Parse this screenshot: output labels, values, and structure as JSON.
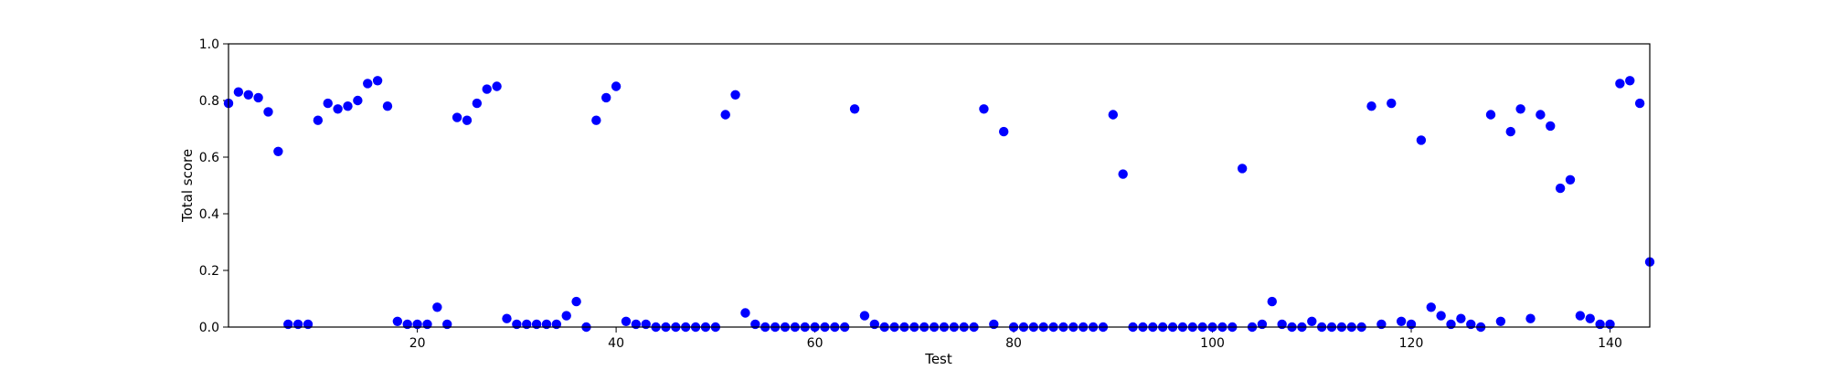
{
  "chart_data": {
    "type": "scatter",
    "title": "",
    "xlabel": "Test",
    "ylabel": "Total score",
    "xlim": [
      1,
      144
    ],
    "ylim": [
      0.0,
      1.0
    ],
    "grid": false,
    "xticks": [
      20,
      40,
      60,
      80,
      100,
      120,
      140
    ],
    "yticks": [
      "0.0",
      "0.2",
      "0.4",
      "0.6",
      "0.8",
      "1.0"
    ],
    "series": [
      {
        "color": "#0000ff",
        "points": [
          [
            1,
            0.79
          ],
          [
            2,
            0.83
          ],
          [
            3,
            0.82
          ],
          [
            4,
            0.81
          ],
          [
            5,
            0.76
          ],
          [
            6,
            0.62
          ],
          [
            7,
            0.01
          ],
          [
            8,
            0.01
          ],
          [
            9,
            0.01
          ],
          [
            10,
            0.73
          ],
          [
            11,
            0.79
          ],
          [
            12,
            0.77
          ],
          [
            13,
            0.78
          ],
          [
            14,
            0.8
          ],
          [
            15,
            0.86
          ],
          [
            16,
            0.87
          ],
          [
            17,
            0.78
          ],
          [
            18,
            0.02
          ],
          [
            19,
            0.01
          ],
          [
            20,
            0.01
          ],
          [
            21,
            0.01
          ],
          [
            22,
            0.07
          ],
          [
            23,
            0.01
          ],
          [
            24,
            0.74
          ],
          [
            25,
            0.73
          ],
          [
            26,
            0.79
          ],
          [
            27,
            0.84
          ],
          [
            28,
            0.85
          ],
          [
            29,
            0.03
          ],
          [
            30,
            0.01
          ],
          [
            31,
            0.01
          ],
          [
            32,
            0.01
          ],
          [
            33,
            0.01
          ],
          [
            34,
            0.01
          ],
          [
            35,
            0.04
          ],
          [
            36,
            0.09
          ],
          [
            37,
            0.0
          ],
          [
            38,
            0.73
          ],
          [
            39,
            0.81
          ],
          [
            40,
            0.85
          ],
          [
            41,
            0.02
          ],
          [
            42,
            0.01
          ],
          [
            43,
            0.01
          ],
          [
            44,
            0.0
          ],
          [
            45,
            0.0
          ],
          [
            46,
            0.0
          ],
          [
            47,
            0.0
          ],
          [
            48,
            0.0
          ],
          [
            49,
            0.0
          ],
          [
            50,
            0.0
          ],
          [
            51,
            0.75
          ],
          [
            52,
            0.82
          ],
          [
            53,
            0.05
          ],
          [
            54,
            0.01
          ],
          [
            55,
            0.0
          ],
          [
            56,
            0.0
          ],
          [
            57,
            0.0
          ],
          [
            58,
            0.0
          ],
          [
            59,
            0.0
          ],
          [
            60,
            0.0
          ],
          [
            61,
            0.0
          ],
          [
            62,
            0.0
          ],
          [
            63,
            0.0
          ],
          [
            64,
            0.77
          ],
          [
            65,
            0.04
          ],
          [
            66,
            0.01
          ],
          [
            67,
            0.0
          ],
          [
            68,
            0.0
          ],
          [
            69,
            0.0
          ],
          [
            70,
            0.0
          ],
          [
            71,
            0.0
          ],
          [
            72,
            0.0
          ],
          [
            73,
            0.0
          ],
          [
            74,
            0.0
          ],
          [
            75,
            0.0
          ],
          [
            76,
            0.0
          ],
          [
            77,
            0.77
          ],
          [
            78,
            0.01
          ],
          [
            79,
            0.69
          ],
          [
            80,
            0.0
          ],
          [
            81,
            0.0
          ],
          [
            82,
            0.0
          ],
          [
            83,
            0.0
          ],
          [
            84,
            0.0
          ],
          [
            85,
            0.0
          ],
          [
            86,
            0.0
          ],
          [
            87,
            0.0
          ],
          [
            88,
            0.0
          ],
          [
            89,
            0.0
          ],
          [
            90,
            0.75
          ],
          [
            91,
            0.54
          ],
          [
            92,
            0.0
          ],
          [
            93,
            0.0
          ],
          [
            94,
            0.0
          ],
          [
            95,
            0.0
          ],
          [
            96,
            0.0
          ],
          [
            97,
            0.0
          ],
          [
            98,
            0.0
          ],
          [
            99,
            0.0
          ],
          [
            100,
            0.0
          ],
          [
            101,
            0.0
          ],
          [
            102,
            0.0
          ],
          [
            103,
            0.56
          ],
          [
            104,
            0.0
          ],
          [
            105,
            0.01
          ],
          [
            106,
            0.09
          ],
          [
            107,
            0.01
          ],
          [
            108,
            0.0
          ],
          [
            109,
            0.0
          ],
          [
            110,
            0.02
          ],
          [
            111,
            0.0
          ],
          [
            112,
            0.0
          ],
          [
            113,
            0.0
          ],
          [
            114,
            0.0
          ],
          [
            115,
            0.0
          ],
          [
            116,
            0.78
          ],
          [
            117,
            0.01
          ],
          [
            118,
            0.79
          ],
          [
            119,
            0.02
          ],
          [
            120,
            0.01
          ],
          [
            121,
            0.66
          ],
          [
            122,
            0.07
          ],
          [
            123,
            0.04
          ],
          [
            124,
            0.01
          ],
          [
            125,
            0.03
          ],
          [
            126,
            0.01
          ],
          [
            127,
            0.0
          ],
          [
            128,
            0.75
          ],
          [
            129,
            0.02
          ],
          [
            130,
            0.69
          ],
          [
            131,
            0.77
          ],
          [
            132,
            0.03
          ],
          [
            133,
            0.75
          ],
          [
            134,
            0.71
          ],
          [
            135,
            0.49
          ],
          [
            136,
            0.52
          ],
          [
            137,
            0.04
          ],
          [
            138,
            0.03
          ],
          [
            139,
            0.01
          ],
          [
            140,
            0.01
          ],
          [
            141,
            0.86
          ],
          [
            142,
            0.87
          ],
          [
            143,
            0.79
          ],
          [
            144,
            0.23
          ]
        ]
      }
    ]
  }
}
